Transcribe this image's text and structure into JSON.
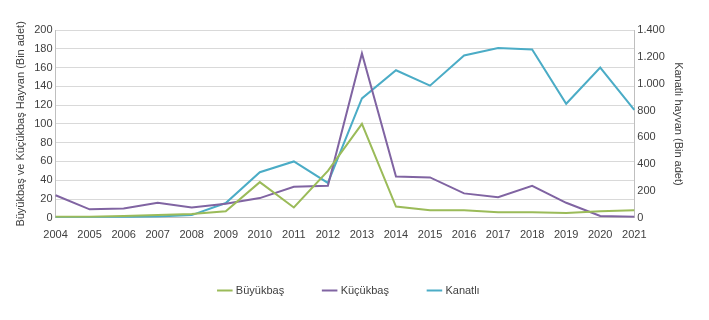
{
  "chart_data": {
    "type": "line",
    "categories": [
      "2004",
      "2005",
      "2006",
      "2007",
      "2008",
      "2009",
      "2010",
      "2011",
      "2012",
      "2013",
      "2014",
      "2015",
      "2016",
      "2017",
      "2018",
      "2019",
      "2020",
      "2021"
    ],
    "series": [
      {
        "name": "Büyükbaş",
        "color": "#9BBB59",
        "values": [
          1,
          1,
          2,
          3,
          4,
          7,
          38,
          11,
          50,
          100,
          12,
          8,
          8,
          6,
          6,
          5,
          7,
          8
        ]
      },
      {
        "name": "Küçükbaş",
        "color": "#8064A2",
        "values": [
          24,
          9,
          10,
          16,
          11,
          15,
          21,
          33,
          34,
          175,
          44,
          43,
          26,
          22,
          34,
          16,
          2,
          1
        ]
      },
      {
        "name": "Kanatlı",
        "color": "#4BACC6",
        "axis": "y2",
        "values": [
          3,
          4,
          5,
          10,
          20,
          110,
          340,
          420,
          260,
          890,
          1100,
          985,
          1210,
          1265,
          1255,
          850,
          1120,
          805
        ]
      }
    ],
    "y_label": "Büyükbaş ve Küçükbaş Hayvan (Bin adet)",
    "y2_label": "Kanatlı hayvan (Bin adet)",
    "ylim": [
      0,
      200
    ],
    "yticks": [
      0,
      20,
      40,
      60,
      80,
      100,
      120,
      140,
      160,
      180,
      200
    ],
    "y2lim": [
      0,
      1400
    ],
    "y2ticks": [
      0,
      200,
      400,
      600,
      800,
      {
        "value": 1000,
        "label": "1.000"
      },
      {
        "value": 1200,
        "label": "1.200"
      },
      {
        "value": 1400,
        "label": "1.400"
      }
    ],
    "grid": true,
    "legend": "bottom"
  }
}
